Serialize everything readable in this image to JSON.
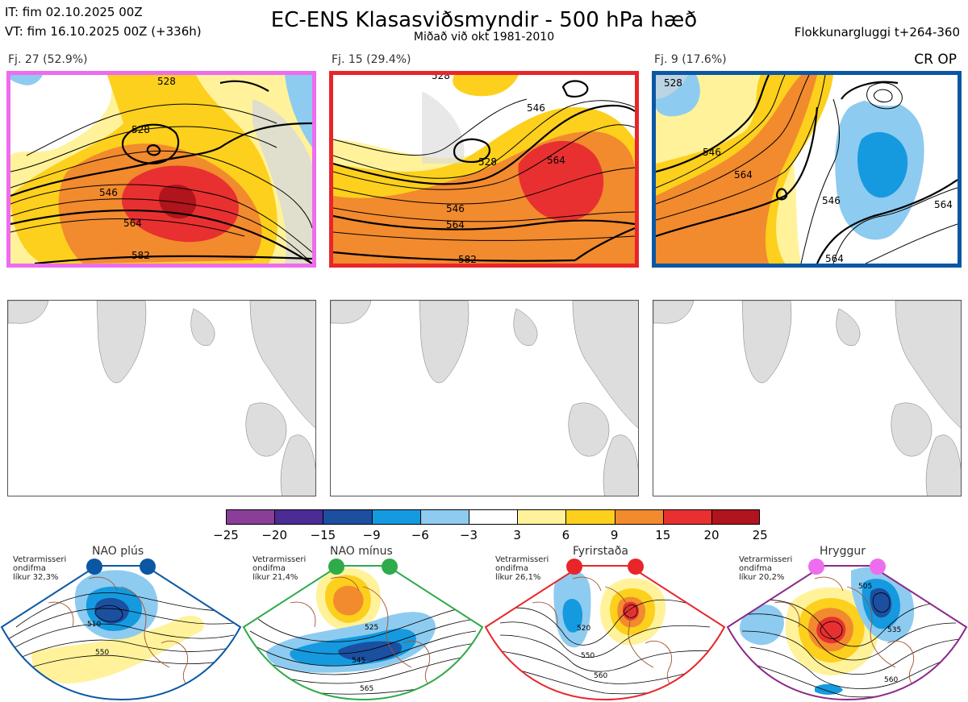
{
  "header": {
    "it_line": "IT: fim 02.10.2025 00Z",
    "vt_line": "VT: fim 16.10.2025 00Z  (+336h)",
    "title": "EC-ENS Klasasviðsmyndir - 500 hPa hæð",
    "subtitle": "Miðað við okt 1981-2010",
    "window": "Flokkunargluggi t+264-360"
  },
  "clusters": [
    {
      "label": "Fj. 27 (52.9%)",
      "frame_color": "#ee6cee",
      "contours": [
        "528",
        "546",
        "564",
        "582",
        "528"
      ]
    },
    {
      "label": "Fj. 15 (29.4%)",
      "frame_color": "#e8262a",
      "contours": [
        "528",
        "546",
        "564",
        "582",
        "528",
        "546",
        "564"
      ]
    },
    {
      "label": "Fj. 9 (17.6%)",
      "frame_color": "#0b57a4",
      "contours": [
        "528",
        "546",
        "564",
        "564",
        "546",
        "564"
      ],
      "tag": "CR OP"
    }
  ],
  "colorbar": {
    "colors": [
      "#8a3e98",
      "#4a2c94",
      "#1c4fa0",
      "#159ae0",
      "#8ecbf0",
      "#ffffff",
      "#fff29a",
      "#fcd01c",
      "#f28a2e",
      "#e83030",
      "#b0141c"
    ],
    "ticks": [
      "−25",
      "−20",
      "−15",
      "−9",
      "−6",
      "−3",
      "3",
      "6",
      "9",
      "15",
      "20",
      "25"
    ]
  },
  "regimes": [
    {
      "title": "NAO plús",
      "stats": [
        "Vetrarmisseri",
        "ondifma",
        "líkur 32,3%"
      ],
      "color": "#0b57a4",
      "dot_color": "#0b57a4",
      "contours": [
        "510",
        "550"
      ]
    },
    {
      "title": "NAO mínus",
      "stats": [
        "Vetrarmisseri",
        "ondifma",
        "líkur 21,4%"
      ],
      "color": "#2eab4a",
      "dot_color": "#2eab4a",
      "contours": [
        "525",
        "545",
        "565"
      ]
    },
    {
      "title": "Fyrirstaða",
      "stats": [
        "Vetrarmisseri",
        "ondifma",
        "líkur 26,1%"
      ],
      "color": "#e8262a",
      "dot_color": "#e8262a",
      "contours": [
        "520",
        "550",
        "560"
      ]
    },
    {
      "title": "Hryggur",
      "stats": [
        "Vetrarmisseri",
        "ondifma",
        "líkur 20,2%"
      ],
      "color": "#8a2a8a",
      "dot_color": "#ee6cee",
      "contours": [
        "505",
        "535",
        "560"
      ]
    }
  ]
}
